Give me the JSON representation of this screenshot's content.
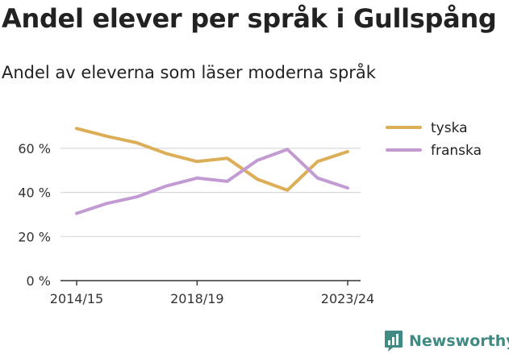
{
  "title": "Andel elever per språk i Gullspång",
  "subtitle": "Andel av eleverna som läser moderna språk",
  "brand": {
    "name": "Newsworthy",
    "color": "#3f8a83"
  },
  "chart_data": {
    "type": "line",
    "title": "Andel elever per språk i Gullspång",
    "subtitle": "Andel av eleverna som läser moderna språk",
    "x": [
      "2014/15",
      "2015/16",
      "2016/17",
      "2017/18",
      "2018/19",
      "2019/20",
      "2020/21",
      "2021/22",
      "2022/23",
      "2023/24"
    ],
    "x_tick_labels": [
      "2014/15",
      "2018/19",
      "2023/24"
    ],
    "y_ticks": [
      0,
      20,
      40,
      60
    ],
    "y_tick_labels": [
      "0 %",
      "20 %",
      "40 %",
      "60 %"
    ],
    "ylim": [
      0,
      70
    ],
    "grid": true,
    "legend_position": "top-right",
    "series": [
      {
        "name": "tyska",
        "color": "#dcae57",
        "values": [
          69,
          65.5,
          62.5,
          57.5,
          54,
          55.5,
          46,
          41,
          54,
          58.5
        ]
      },
      {
        "name": "franska",
        "color": "#c39bd3",
        "values": [
          30.5,
          35,
          38,
          43,
          46.5,
          45,
          54.5,
          59.5,
          46.5,
          42
        ]
      }
    ]
  }
}
